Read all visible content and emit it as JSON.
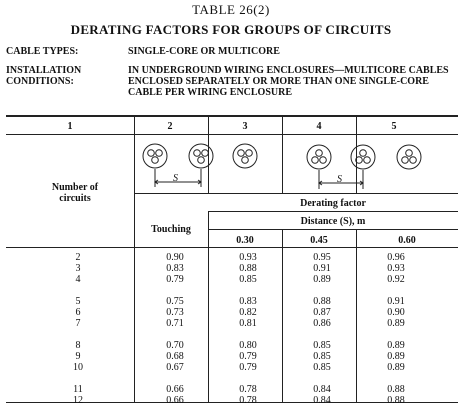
{
  "table_title": "TABLE   26(2)",
  "heading": "DERATING FACTORS FOR GROUPS OF CIRCUITS",
  "cable_types_label": "CABLE TYPES:",
  "cable_types_value": "SINGLE-CORE OR MULTICORE",
  "installation_label_1": "INSTALLATION",
  "installation_label_2": "CONDITIONS:",
  "installation_value_1": "IN UNDERGROUND WIRING ENCLOSURES—MULTICORE CABLES",
  "installation_value_2": "ENCLOSED SEPARATELY OR MORE THAN ONE SINGLE-CORE",
  "installation_value_3": "CABLE PER WIRING ENCLOSURE",
  "column_numbers": [
    "1",
    "2",
    "3",
    "4",
    "5"
  ],
  "number_of_circuits_label_1": "Number of",
  "number_of_circuits_label_2": "circuits",
  "derating_factor_label": "Derating factor",
  "touching_label": "Touching",
  "distance_label": "Distance (S), m",
  "distance_values": [
    "0.30",
    "0.45",
    "0.60"
  ],
  "spacing_symbol": "S",
  "rows": {
    "circuits": "2\n3\n4\n\n5\n6\n7\n\n8\n9\n10\n\n11\n12",
    "touching": "0.90\n0.83\n0.79\n\n0.75\n0.73\n0.71\n\n0.70\n0.68\n0.67\n\n0.66\n0.66",
    "d030": "0.93\n0.88\n0.85\n\n0.83\n0.82\n0.81\n\n0.80\n0.79\n0.79\n\n0.78\n0.78",
    "d045": "0.95\n0.91\n0.89\n\n0.88\n0.87\n0.86\n\n0.85\n0.85\n0.85\n\n0.84\n0.84",
    "d060": "0.96\n0.93\n0.92\n\n0.91\n0.90\n0.89\n\n0.89\n0.89\n0.89\n\n0.88\n0.88"
  }
}
